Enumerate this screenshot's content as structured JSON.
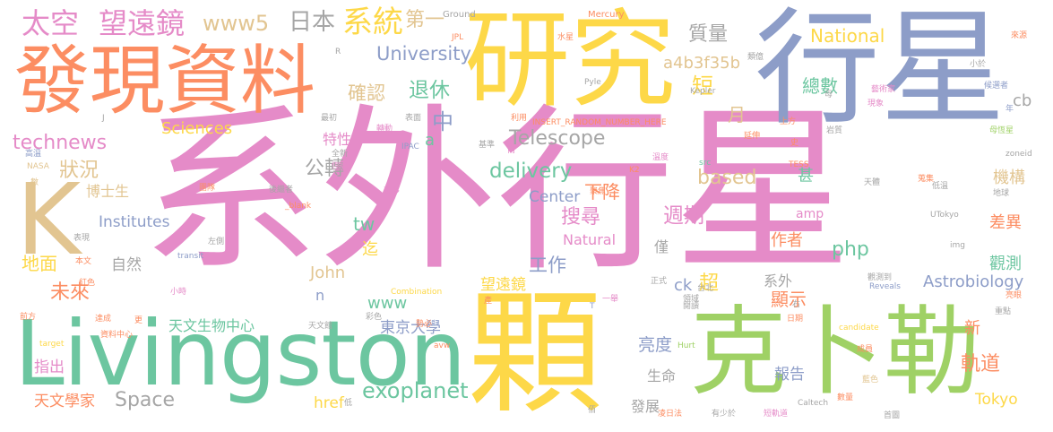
{
  "palette": {
    "pink": "#e58bc8",
    "yellow": "#fdd848",
    "green": "#9fd165",
    "teal": "#6cc6a0",
    "blue": "#8d9dc8",
    "orange": "#fc8d62",
    "tan": "#e2c591",
    "gray": "#a6a6a6"
  },
  "words": [
    {
      "text": "系外行星",
      "color": "pink",
      "weight": "big"
    },
    {
      "text": "Livingston",
      "color": "teal",
      "weight": "big"
    },
    {
      "text": "顆",
      "color": "yellow",
      "weight": "big"
    },
    {
      "text": "研究",
      "color": "yellow",
      "weight": "big"
    },
    {
      "text": "行星",
      "color": "blue",
      "weight": "big"
    },
    {
      "text": "克卜勒",
      "color": "green",
      "weight": "big"
    },
    {
      "text": "發現資料",
      "color": "orange",
      "weight": "big"
    },
    {
      "text": "K",
      "color": "tan",
      "weight": "big"
    },
    {
      "text": "太空",
      "color": "pink"
    },
    {
      "text": "望遠鏡",
      "color": "pink"
    },
    {
      "text": "www5",
      "color": "tan"
    },
    {
      "text": "日本",
      "color": "gray"
    },
    {
      "text": "系統",
      "color": "yellow"
    },
    {
      "text": "第一",
      "color": "tan"
    },
    {
      "text": "質量",
      "color": "gray"
    },
    {
      "text": "National",
      "color": "yellow"
    },
    {
      "text": "University",
      "color": "blue"
    },
    {
      "text": "確認",
      "color": "tan"
    },
    {
      "text": "退休",
      "color": "teal"
    },
    {
      "text": "a4b3f35b",
      "color": "tan"
    },
    {
      "text": "短",
      "color": "yellow"
    },
    {
      "text": "總數",
      "color": "teal"
    },
    {
      "text": "中",
      "color": "blue"
    },
    {
      "text": "月",
      "color": "tan"
    },
    {
      "text": "Sciences",
      "color": "yellow"
    },
    {
      "text": "technews",
      "color": "pink"
    },
    {
      "text": "Telescope",
      "color": "gray"
    },
    {
      "text": "特性",
      "color": "pink"
    },
    {
      "text": "a",
      "color": "teal"
    },
    {
      "text": "狀況",
      "color": "tan"
    },
    {
      "text": "公轉",
      "color": "gray"
    },
    {
      "text": "delivery",
      "color": "teal"
    },
    {
      "text": "based",
      "color": "tan"
    },
    {
      "text": "甚",
      "color": "teal"
    },
    {
      "text": "機構",
      "color": "tan"
    },
    {
      "text": "cb",
      "color": "gray"
    },
    {
      "text": "博士生",
      "color": "tan"
    },
    {
      "text": "Center",
      "color": "blue"
    },
    {
      "text": "下降",
      "color": "orange"
    },
    {
      "text": "搜尋",
      "color": "pink"
    },
    {
      "text": "週期",
      "color": "pink"
    },
    {
      "text": "Institutes",
      "color": "blue"
    },
    {
      "text": "tw",
      "color": "teal"
    },
    {
      "text": "Natural",
      "color": "pink"
    },
    {
      "text": "amp",
      "color": "pink"
    },
    {
      "text": "差異",
      "color": "orange"
    },
    {
      "text": "地面",
      "color": "yellow"
    },
    {
      "text": "迄",
      "color": "yellow"
    },
    {
      "text": "php",
      "color": "teal"
    },
    {
      "text": "作者",
      "color": "orange"
    },
    {
      "text": "自然",
      "color": "gray"
    },
    {
      "text": "工作",
      "color": "blue"
    },
    {
      "text": "僅",
      "color": "gray"
    },
    {
      "text": "ck",
      "color": "blue"
    },
    {
      "text": "超",
      "color": "yellow"
    },
    {
      "text": "觀測",
      "color": "teal"
    },
    {
      "text": "未來",
      "color": "orange"
    },
    {
      "text": "John",
      "color": "tan"
    },
    {
      "text": "望遠鏡",
      "color": "yellow"
    },
    {
      "text": "系外",
      "color": "gray"
    },
    {
      "text": "Astrobiology",
      "color": "blue"
    },
    {
      "text": "顯示",
      "color": "orange"
    },
    {
      "text": "www",
      "color": "teal"
    },
    {
      "text": "n",
      "color": "blue"
    },
    {
      "text": "天文生物中心",
      "color": "teal"
    },
    {
      "text": "東京大學",
      "color": "blue"
    },
    {
      "text": "新",
      "color": "orange"
    },
    {
      "text": "亮度",
      "color": "blue"
    },
    {
      "text": "軌道",
      "color": "orange"
    },
    {
      "text": "指出",
      "color": "pink"
    },
    {
      "text": "生命",
      "color": "gray"
    },
    {
      "text": "報告",
      "color": "blue"
    },
    {
      "text": "exoplanet",
      "color": "teal"
    },
    {
      "text": "天文學家",
      "color": "orange"
    },
    {
      "text": "Space",
      "color": "gray"
    },
    {
      "text": "href",
      "color": "yellow"
    },
    {
      "text": "發展",
      "color": "gray"
    },
    {
      "text": "Tokyo",
      "color": "yellow"
    },
    {
      "text": "Ground",
      "color": "gray"
    },
    {
      "text": "Mercury",
      "color": "orange"
    },
    {
      "text": "JPL",
      "color": "orange"
    },
    {
      "text": "水星",
      "color": "orange"
    },
    {
      "text": "來源",
      "color": "orange"
    },
    {
      "text": "Pyle",
      "color": "gray"
    },
    {
      "text": "Kepler",
      "color": "gray"
    },
    {
      "text": "INSERT_RANDOM_NUMBER_HERE",
      "color": "orange"
    },
    {
      "text": "IPAC",
      "color": "blue"
    },
    {
      "text": "TESS",
      "color": "orange"
    },
    {
      "text": "NASA",
      "color": "tan"
    },
    {
      "text": "_blank",
      "color": "orange"
    },
    {
      "text": "UTokyo",
      "color": "gray"
    },
    {
      "text": "zoneid",
      "color": "gray"
    },
    {
      "text": "transit",
      "color": "blue"
    },
    {
      "text": "Combination",
      "color": "yellow"
    },
    {
      "text": "Reveals",
      "color": "blue"
    },
    {
      "text": "target",
      "color": "yellow"
    },
    {
      "text": "candidate",
      "color": "yellow"
    },
    {
      "text": "Hurt",
      "color": "green"
    },
    {
      "text": "Caltech",
      "color": "gray"
    },
    {
      "text": "src",
      "color": "teal"
    },
    {
      "text": "img",
      "color": "gray"
    },
    {
      "text": "avw",
      "color": "orange"
    },
    {
      "text": "K2",
      "color": "orange"
    },
    {
      "text": "母恆星",
      "color": "green"
    },
    {
      "text": "上方",
      "color": "orange"
    },
    {
      "text": "藝術家",
      "color": "pink"
    },
    {
      "text": "全新",
      "color": "gray"
    },
    {
      "text": "恆星",
      "color": "pink"
    },
    {
      "text": "高溫",
      "color": "blue"
    },
    {
      "text": "低溫",
      "color": "gray"
    },
    {
      "text": "天體",
      "color": "gray"
    },
    {
      "text": "蒐集",
      "color": "orange"
    },
    {
      "text": "地球",
      "color": "gray"
    },
    {
      "text": "溫度",
      "color": "pink"
    },
    {
      "text": "團隊",
      "color": "orange"
    },
    {
      "text": "後繼者",
      "color": "gray"
    },
    {
      "text": "聚焦",
      "color": "orange"
    },
    {
      "text": "更多",
      "color": "pink"
    },
    {
      "text": "天文館",
      "color": "gray"
    },
    {
      "text": "彩色",
      "color": "gray"
    },
    {
      "text": "勢必",
      "color": "orange"
    },
    {
      "text": "一舉",
      "color": "pink"
    },
    {
      "text": "正式",
      "color": "gray"
    },
    {
      "text": "台北",
      "color": "gray"
    },
    {
      "text": "領域",
      "color": "gray"
    },
    {
      "text": "日期",
      "color": "orange"
    },
    {
      "text": "重點",
      "color": "gray"
    },
    {
      "text": "亮眼",
      "color": "orange"
    },
    {
      "text": "觀測到",
      "color": "gray"
    },
    {
      "text": "成員",
      "color": "orange"
    },
    {
      "text": "藍色",
      "color": "tan"
    },
    {
      "text": "數量",
      "color": "orange"
    },
    {
      "text": "資料中心",
      "color": "orange"
    },
    {
      "text": "延伸",
      "color": "orange"
    },
    {
      "text": "轉動",
      "color": "pink"
    },
    {
      "text": "基準",
      "color": "gray"
    },
    {
      "text": "表現",
      "color": "gray"
    },
    {
      "text": "左側",
      "color": "gray"
    },
    {
      "text": "本文",
      "color": "orange"
    },
    {
      "text": "紅色",
      "color": "orange"
    },
    {
      "text": "前方",
      "color": "orange"
    },
    {
      "text": "達成",
      "color": "orange"
    },
    {
      "text": "小時",
      "color": "pink"
    },
    {
      "text": "表面",
      "color": "gray"
    },
    {
      "text": "首圖",
      "color": "gray"
    },
    {
      "text": "凌日法",
      "color": "orange"
    },
    {
      "text": "有少於",
      "color": "gray"
    },
    {
      "text": "短軌道",
      "color": "pink"
    },
    {
      "text": "最初",
      "color": "gray"
    },
    {
      "text": "利用",
      "color": "orange"
    },
    {
      "text": "岩質",
      "color": "gray"
    },
    {
      "text": "候選者",
      "color": "blue"
    },
    {
      "text": "現象",
      "color": "pink"
    },
    {
      "text": "小於",
      "color": "gray"
    },
    {
      "text": "類億",
      "color": "gray"
    },
    {
      "text": "數",
      "color": "tan"
    },
    {
      "text": "閱讀",
      "color": "gray"
    },
    {
      "text": "產",
      "color": "orange"
    },
    {
      "text": "低",
      "color": "gray"
    },
    {
      "text": "佰",
      "color": "gray"
    },
    {
      "text": "南",
      "color": "pink"
    },
    {
      "text": "史",
      "color": "orange"
    },
    {
      "text": "右",
      "color": "gray"
    },
    {
      "text": "更",
      "color": "orange"
    },
    {
      "text": "T",
      "color": "blue"
    },
    {
      "text": "J",
      "color": "gray"
    },
    {
      "text": "R",
      "color": "gray"
    },
    {
      "text": "年",
      "color": "blue"
    },
    {
      "text": "母",
      "color": "gray"
    }
  ]
}
